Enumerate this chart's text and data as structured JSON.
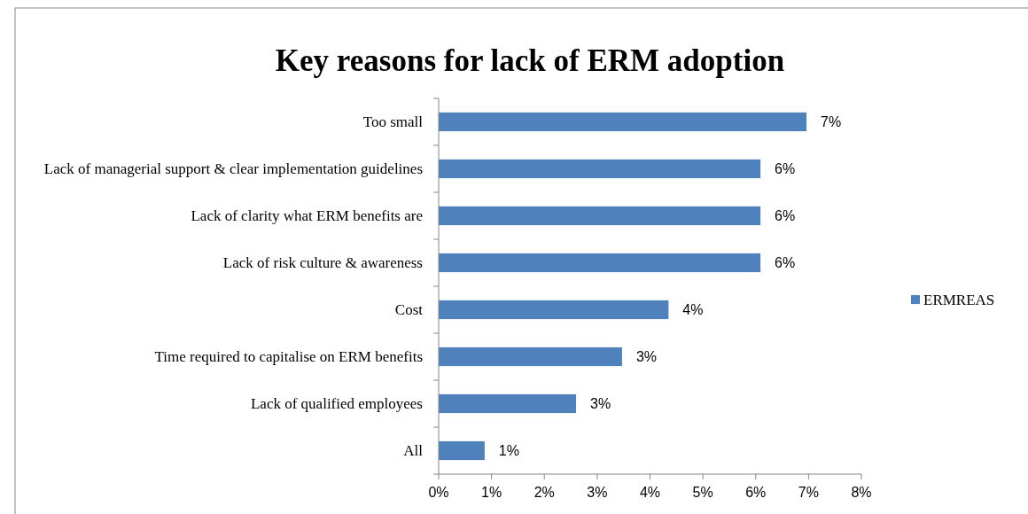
{
  "chart_data": {
    "type": "bar",
    "orientation": "horizontal",
    "title": "Key reasons for lack of ERM adoption",
    "categories": [
      "Too small",
      "Lack of managerial support & clear implementation guidelines",
      "Lack of clarity what ERM benefits are",
      "Lack of risk culture & awareness",
      "Cost",
      "Time required to capitalise on ERM benefits",
      "Lack of qualified employees",
      "All"
    ],
    "series": [
      {
        "name": "ERMREAS",
        "color": "#4f81bd",
        "values": [
          6.96,
          6.09,
          6.09,
          6.09,
          4.35,
          3.47,
          2.6,
          0.87
        ],
        "value_labels": [
          "7%",
          "6%",
          "6%",
          "6%",
          "4%",
          "3%",
          "3%",
          "1%"
        ]
      }
    ],
    "xlim": [
      0,
      8
    ],
    "xticks": [
      {
        "value": 0,
        "label": "0%"
      },
      {
        "value": 1,
        "label": "1%"
      },
      {
        "value": 2,
        "label": "2%"
      },
      {
        "value": 3,
        "label": "3%"
      },
      {
        "value": 4,
        "label": "4%"
      },
      {
        "value": 5,
        "label": "5%"
      },
      {
        "value": 6,
        "label": "6%"
      },
      {
        "value": 7,
        "label": "7%"
      },
      {
        "value": 8,
        "label": "8%"
      }
    ],
    "grid": false,
    "legend": "right"
  }
}
